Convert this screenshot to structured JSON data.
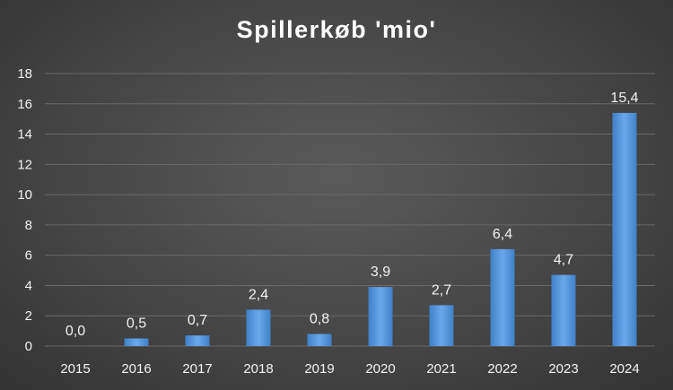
{
  "chart_data": {
    "type": "bar",
    "title": "Spillerkøb 'mio'",
    "categories": [
      "2015",
      "2016",
      "2017",
      "2018",
      "2019",
      "2020",
      "2021",
      "2022",
      "2023",
      "2024"
    ],
    "values": [
      0.0,
      0.5,
      0.7,
      2.4,
      0.8,
      3.9,
      2.7,
      6.4,
      4.7,
      15.4
    ],
    "data_labels": [
      "0,0",
      "0,5",
      "0,7",
      "2,4",
      "0,8",
      "3,9",
      "2,7",
      "6,4",
      "4,7",
      "15,4"
    ],
    "ylim": [
      0,
      18
    ],
    "yticks": [
      0,
      2,
      4,
      6,
      8,
      10,
      12,
      14,
      16,
      18
    ],
    "xlabel": "",
    "ylabel": "",
    "grid": true,
    "legend": "none",
    "colors": {
      "bar": "#4a8fd8",
      "bar_light": "#6aa8ea",
      "grid": "#6a6a6a",
      "text": "#f2f2f2"
    }
  }
}
